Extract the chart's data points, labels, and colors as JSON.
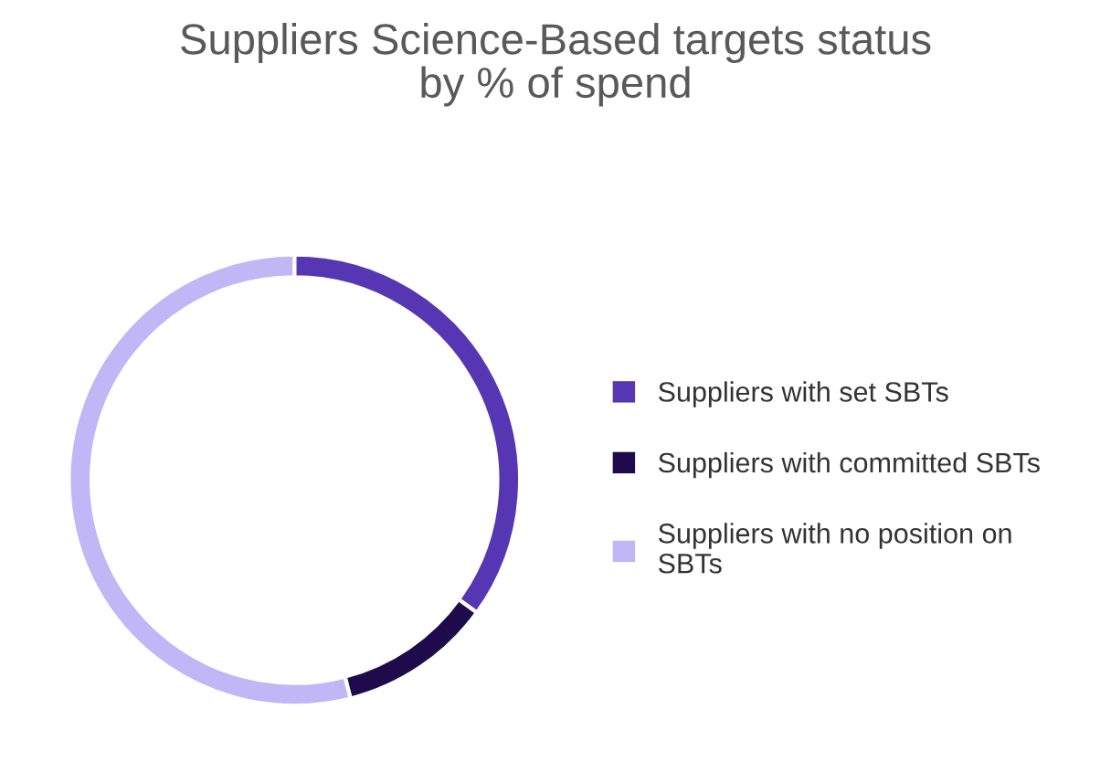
{
  "chart_data": {
    "type": "donut",
    "title": "Suppliers Science-Based targets status\nby % of spend",
    "categories": [
      "Suppliers with set SBTs",
      "Suppliers with committed SBTs",
      "Suppliers with no position on\nSBTs"
    ],
    "values": [
      35,
      11,
      54
    ],
    "colors": [
      "#5636b2",
      "#1f0b4b",
      "#c1b6f6"
    ],
    "legend": "right"
  }
}
